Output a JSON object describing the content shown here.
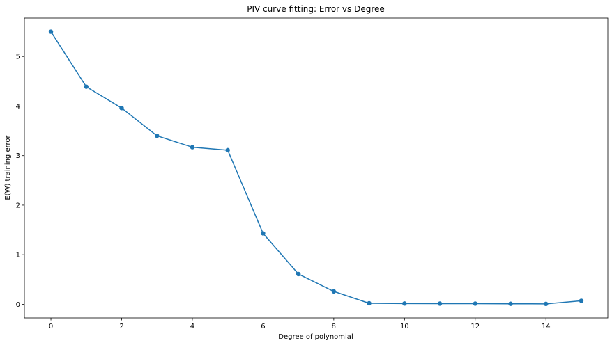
{
  "chart_data": {
    "type": "line",
    "title": "PIV curve fitting: Error vs Degree",
    "xlabel": "Degree of polynomial",
    "ylabel": "E(W) training error",
    "x": [
      0,
      1,
      2,
      3,
      4,
      5,
      6,
      7,
      8,
      9,
      10,
      11,
      12,
      13,
      14,
      15
    ],
    "series": [
      {
        "name": "",
        "values": [
          5.5,
          4.39,
          3.96,
          3.4,
          3.17,
          3.11,
          1.43,
          0.61,
          0.26,
          0.02,
          0.015,
          0.013,
          0.013,
          0.01,
          0.008,
          0.07
        ],
        "color": "#1f77b4",
        "marker": "circle"
      }
    ],
    "xlim": [
      -0.75,
      15.75
    ],
    "ylim": [
      -0.275,
      5.775
    ],
    "xticks": [
      0,
      2,
      4,
      6,
      8,
      10,
      12,
      14
    ],
    "yticks": [
      0,
      1,
      2,
      3,
      4,
      5
    ],
    "grid": false,
    "legend": "none"
  }
}
